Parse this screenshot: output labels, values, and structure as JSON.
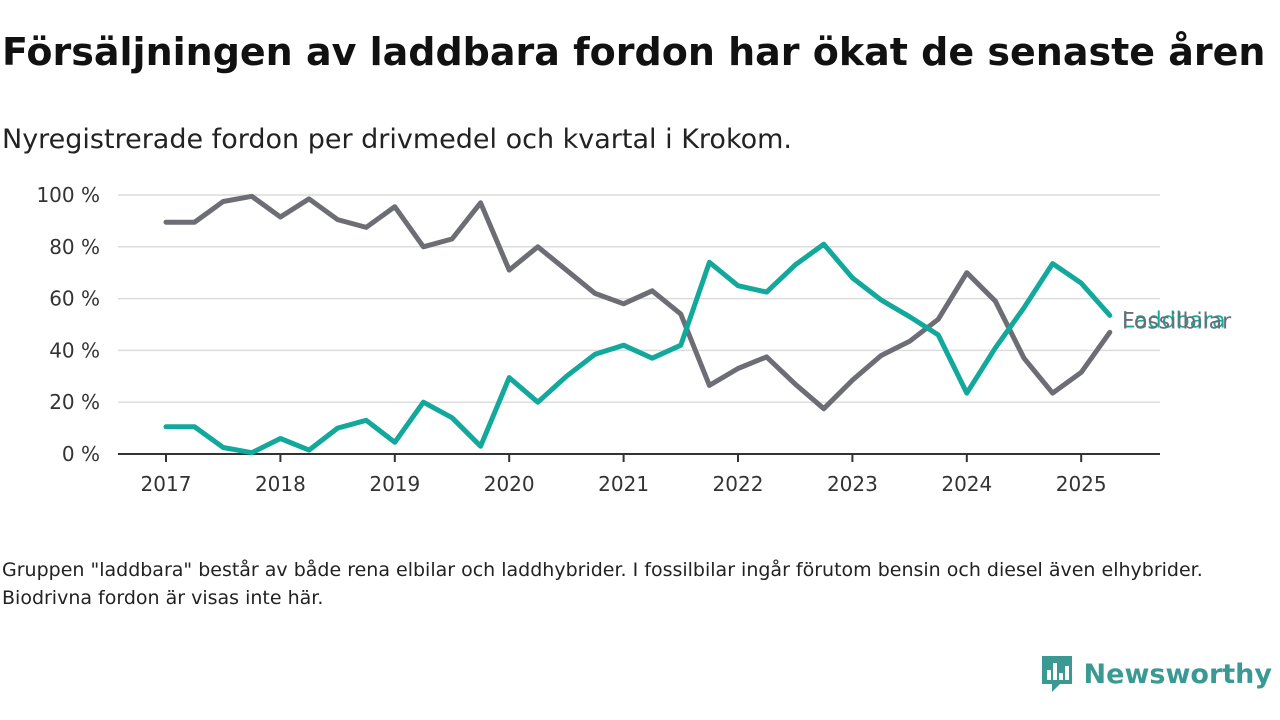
{
  "header": {
    "title": "Försäljningen av laddbara fordon har ökat de senaste åren",
    "subtitle": "Nyregistrerade fordon per drivmedel och kvartal i Krokom."
  },
  "footnote": "Gruppen \"laddbara\" består av både rena elbilar och laddhybrider. I fossilbilar ingår förutom bensin och diesel även elhybrider. Biodrivna fordon är visas inte här.",
  "brand": {
    "name": "Newsworthy",
    "icon": "newsworthy-logo-icon",
    "color": "#3a9a93"
  },
  "chart_data": {
    "type": "line",
    "title": "Försäljningen av laddbara fordon har ökat de senaste åren",
    "subtitle": "Nyregistrerade fordon per drivmedel och kvartal i Krokom.",
    "xlabel": "",
    "ylabel": "",
    "x": [
      "2017-Q1",
      "2017-Q2",
      "2017-Q3",
      "2017-Q4",
      "2018-Q1",
      "2018-Q2",
      "2018-Q3",
      "2018-Q4",
      "2019-Q1",
      "2019-Q2",
      "2019-Q3",
      "2019-Q4",
      "2020-Q1",
      "2020-Q2",
      "2020-Q3",
      "2020-Q4",
      "2021-Q1",
      "2021-Q2",
      "2021-Q3",
      "2021-Q4",
      "2022-Q1",
      "2022-Q2",
      "2022-Q3",
      "2022-Q4",
      "2023-Q1",
      "2023-Q2",
      "2023-Q3",
      "2023-Q4",
      "2024-Q1",
      "2024-Q2",
      "2024-Q3",
      "2024-Q4",
      "2025-Q1",
      "2025-Q2"
    ],
    "x_ticks": [
      "2017",
      "2018",
      "2019",
      "2020",
      "2021",
      "2022",
      "2023",
      "2024",
      "2025"
    ],
    "y_ticks": [
      "0 %",
      "20 %",
      "40 %",
      "60 %",
      "80 %",
      "100 %"
    ],
    "ylim": [
      0,
      100
    ],
    "grid": true,
    "legend": "inline labels at line ends",
    "series": [
      {
        "name": "Fossilbilar",
        "color": "#6d6d76",
        "values": [
          89.5,
          89.5,
          97.5,
          99.5,
          91.5,
          98.5,
          90.5,
          87.5,
          95.5,
          80,
          83,
          97,
          71,
          80,
          71,
          62,
          58,
          63,
          54,
          26.5,
          33,
          37.5,
          27,
          17.5,
          28.5,
          38,
          43.5,
          52,
          70,
          59,
          37,
          23.5,
          31.5,
          47
        ]
      },
      {
        "name": "Laddbara",
        "color": "#12a89b",
        "values": [
          10.5,
          10.5,
          2.5,
          0.5,
          6,
          1.5,
          10,
          13,
          4.5,
          20,
          14,
          3,
          29.5,
          20,
          30,
          38.5,
          42,
          37,
          42,
          74,
          65,
          62.5,
          73,
          81,
          68,
          59.5,
          53,
          46,
          23.5,
          41,
          56.5,
          73.5,
          66,
          53.5
        ]
      }
    ]
  }
}
